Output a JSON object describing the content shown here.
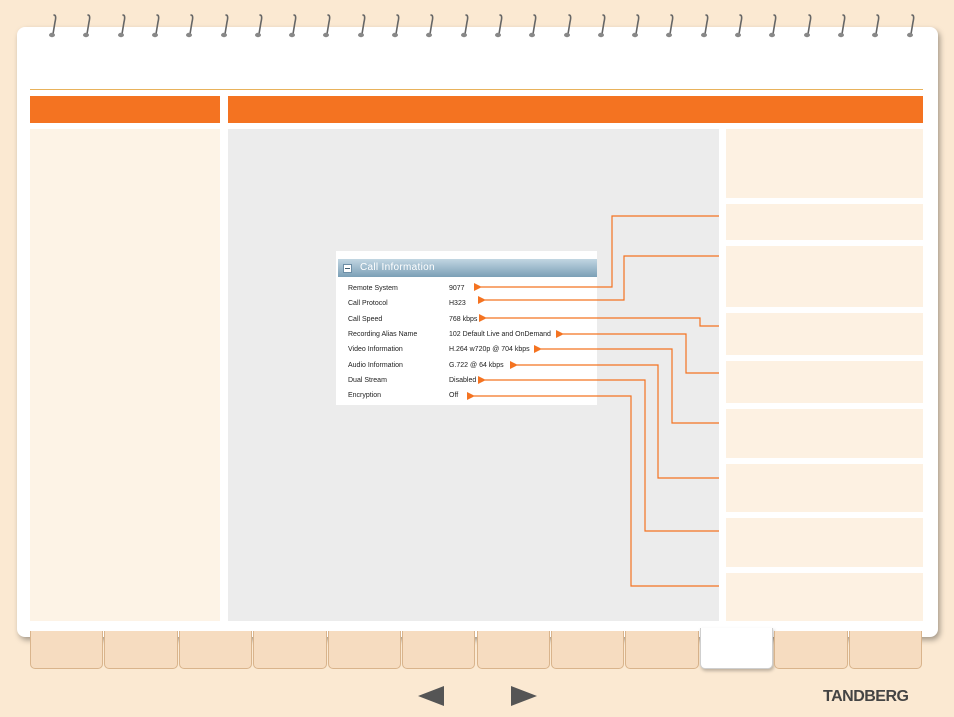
{
  "call_info": {
    "title": "Call Information",
    "rows": [
      {
        "label": "Remote System",
        "value": "9077"
      },
      {
        "label": "Call Protocol",
        "value": "H323"
      },
      {
        "label": "Call Speed",
        "value": "768 kbps"
      },
      {
        "label": "Recording Alias Name",
        "value": "102 Default Live and OnDemand"
      },
      {
        "label": "Video Information",
        "value": "H.264 w720p @ 704 kbps"
      },
      {
        "label": "Audio Information",
        "value": "G.722 @ 64 kbps"
      },
      {
        "label": "Dual Stream",
        "value": "Disabled"
      },
      {
        "label": "Encryption",
        "value": "Off"
      }
    ]
  },
  "footer": {
    "brand": "TANDBERG",
    "tab_count": 12,
    "active_tab_index": 9,
    "prev_icon": "left-arrow-icon",
    "next_icon": "right-arrow-icon"
  },
  "colors": {
    "accent": "#f47321",
    "background": "#fbe9d2",
    "panel": "#fdf1e2",
    "main_panel": "#ececec"
  }
}
